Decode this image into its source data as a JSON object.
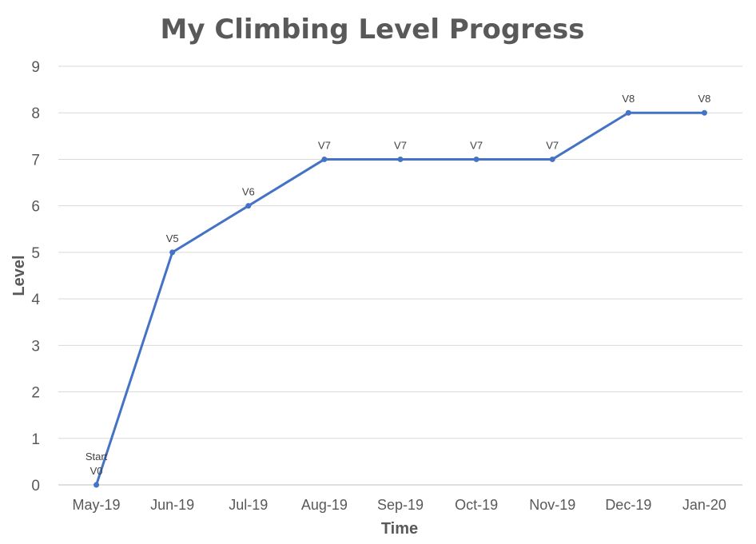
{
  "chart_data": {
    "type": "line",
    "title": "My Climbing Level Progress",
    "xlabel": "Time",
    "ylabel": "Level",
    "ylim": [
      0,
      9
    ],
    "yticks": [
      0,
      1,
      2,
      3,
      4,
      5,
      6,
      7,
      8,
      9
    ],
    "grid": true,
    "categories": [
      "May-19",
      "Jun-19",
      "Jul-19",
      "Aug-19",
      "Sep-19",
      "Oct-19",
      "Nov-19",
      "Dec-19",
      "Jan-20"
    ],
    "series": [
      {
        "values": [
          0,
          5,
          6,
          7,
          7,
          7,
          7,
          8,
          8
        ],
        "labels": [
          [
            "Start",
            "V0"
          ],
          [
            "V5"
          ],
          [
            "V6"
          ],
          [
            "V7"
          ],
          [
            "V7"
          ],
          [
            "V7"
          ],
          [
            "V7"
          ],
          [
            "V8"
          ],
          [
            "V8"
          ]
        ],
        "color": "#4472c4"
      }
    ]
  }
}
